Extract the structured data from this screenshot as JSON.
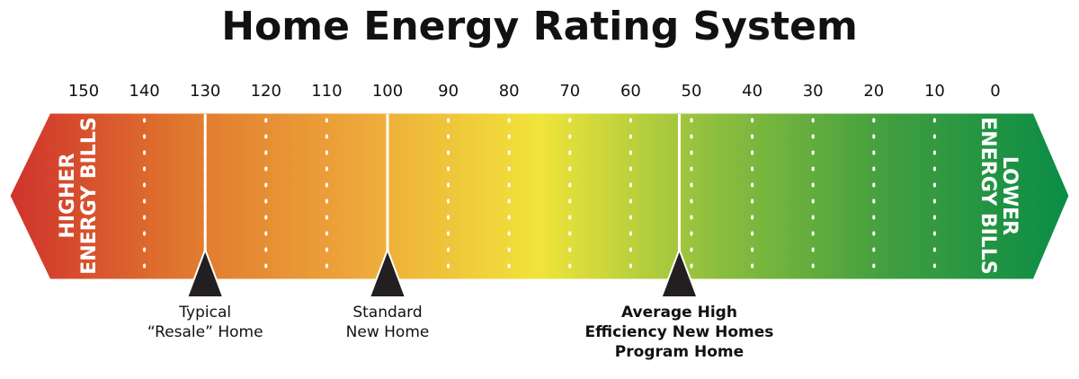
{
  "chart_data": {
    "type": "scale",
    "title": "Home Energy Rating System",
    "xlim": [
      150,
      0
    ],
    "xticks": [
      150,
      140,
      130,
      120,
      110,
      100,
      90,
      80,
      70,
      60,
      50,
      40,
      30,
      20,
      10,
      0
    ],
    "left_label": [
      "HIGHER",
      "ENERGY BILLS"
    ],
    "right_label": [
      "LOWER",
      "ENERGY BILLS"
    ],
    "colors": [
      "#d0322c",
      "#e0782f",
      "#eea83a",
      "#f0e43a",
      "#8cbe3e",
      "#3f9e3f",
      "#0a8c46"
    ],
    "markers": [
      {
        "value": 130,
        "label": [
          "Typical",
          "“Resale” Home"
        ],
        "bold": false
      },
      {
        "value": 100,
        "label": [
          "Standard",
          "New Home"
        ],
        "bold": false
      },
      {
        "value": 52,
        "label": [
          "Average High",
          "Efficiency New Homes",
          "Program Home"
        ],
        "bold": true
      }
    ]
  }
}
